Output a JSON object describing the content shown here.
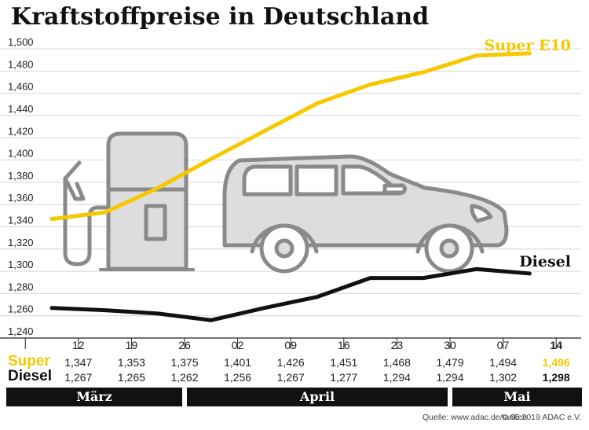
{
  "title": "Kraftstoffpreise in Deutschland",
  "source": "Quelle: www.adac.de/tanken",
  "copyright": "© 05.2019  ADAC e.V.",
  "colors": {
    "super": "#f5c800",
    "diesel": "#111111",
    "grid": "#d6d6d6",
    "illustration_fill": "#dddddd",
    "illustration_stroke": "#8a8a8a",
    "month_bar": "#111111"
  },
  "illustrations": [
    "fuel-pump-icon",
    "car-icon"
  ],
  "chart_data": {
    "type": "line",
    "categories": [
      "12",
      "19",
      "26",
      "02",
      "09",
      "16",
      "23",
      "30",
      "07",
      "14"
    ],
    "highlight_category": "14",
    "ylim": [
      1.24,
      1.51
    ],
    "y_ticks": [
      "1,500",
      "1,480",
      "1,460",
      "1,440",
      "1,420",
      "1,400",
      "1,380",
      "1,360",
      "1,340",
      "1,320",
      "1,300",
      "1,280",
      "1,260",
      "1,240"
    ],
    "grid": true,
    "series": [
      {
        "name": "Super E10",
        "table_label": "Super",
        "values": [
          1.347,
          1.353,
          1.375,
          1.401,
          1.426,
          1.451,
          1.468,
          1.479,
          1.494,
          1.496
        ],
        "labels": [
          "1,347",
          "1,353",
          "1,375",
          "1,401",
          "1,426",
          "1,451",
          "1,468",
          "1,479",
          "1,494",
          "1,496"
        ]
      },
      {
        "name": "Diesel",
        "table_label": "Diesel",
        "values": [
          1.267,
          1.265,
          1.262,
          1.256,
          1.267,
          1.277,
          1.294,
          1.294,
          1.302,
          1.298
        ],
        "labels": [
          "1,267",
          "1,265",
          "1,262",
          "1,256",
          "1,267",
          "1,277",
          "1,294",
          "1,294",
          "1,302",
          "1,298"
        ]
      }
    ],
    "months": [
      {
        "label": "März",
        "from": 0,
        "to": 2
      },
      {
        "label": "April",
        "from": 3,
        "to": 7
      },
      {
        "label": "Mai",
        "from": 8,
        "to": 9
      }
    ]
  }
}
